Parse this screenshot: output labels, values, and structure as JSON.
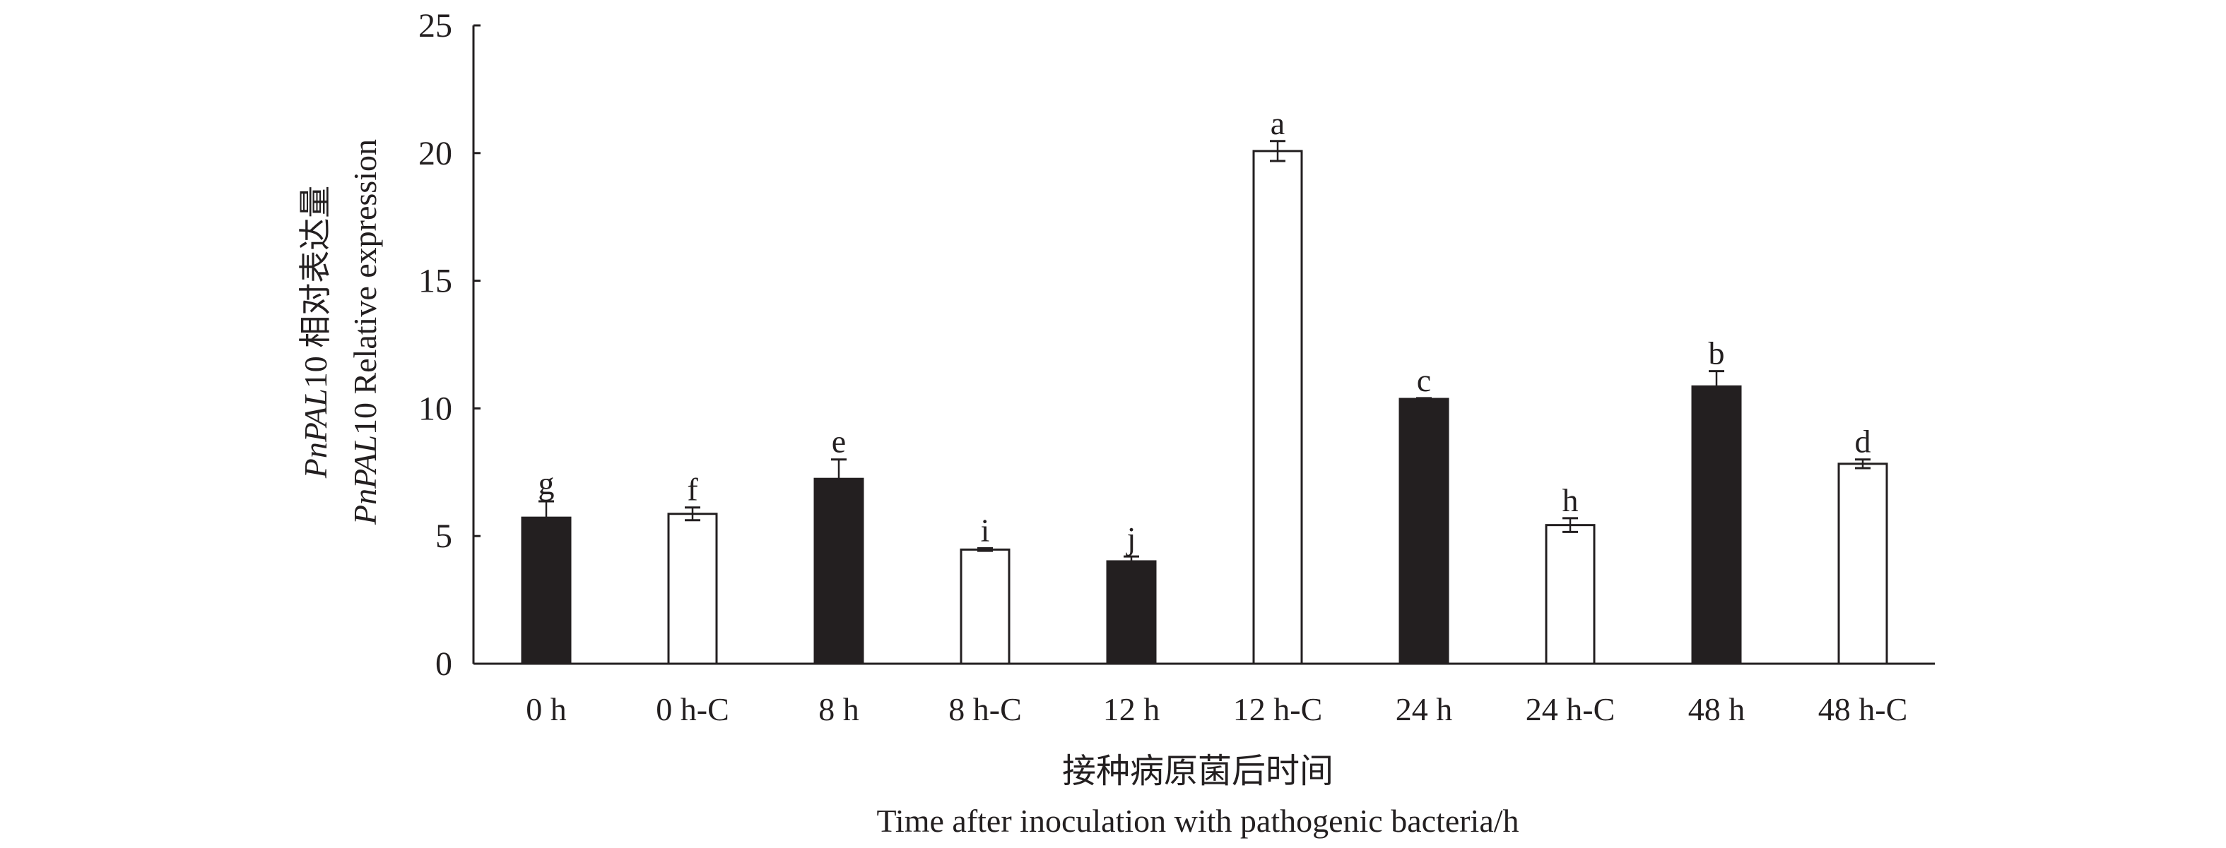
{
  "chart_data": {
    "type": "bar",
    "title": "",
    "categories": [
      "0 h",
      "0 h-C",
      "8 h",
      "8 h-C",
      "12 h",
      "12 h-C",
      "24 h",
      "24 h-C",
      "48 h",
      "48 h-C"
    ],
    "values": [
      5.72,
      5.87,
      7.24,
      4.47,
      4.01,
      20.08,
      10.37,
      5.43,
      10.86,
      7.83
    ],
    "errors": [
      0.64,
      0.25,
      0.76,
      0.05,
      0.19,
      0.39,
      0.03,
      0.27,
      0.6,
      0.17
    ],
    "fill": [
      "black",
      "white",
      "black",
      "white",
      "black",
      "white",
      "black",
      "white",
      "black",
      "white"
    ],
    "significance_letters": [
      "g",
      "f",
      "e",
      "i",
      "j",
      "a",
      "c",
      "h",
      "b",
      "d"
    ],
    "ylim": [
      0,
      25
    ],
    "yticks": [
      0,
      5,
      10,
      15,
      20,
      25
    ],
    "ylabel": {
      "line1": {
        "gene": "PnPAL",
        "suffix": "10 相对表达量"
      },
      "line2": {
        "gene": "PnPAL",
        "suffix": "10 Relative expression"
      }
    },
    "xlabel": {
      "line1": "接种病原菌后时间",
      "line2": "Time after inoculation with pathogenic bacteria/h"
    },
    "grid": false,
    "legend": "none",
    "colors": {
      "dark": "#231f20",
      "light": "#ffffff",
      "axis": "#231f20"
    }
  }
}
